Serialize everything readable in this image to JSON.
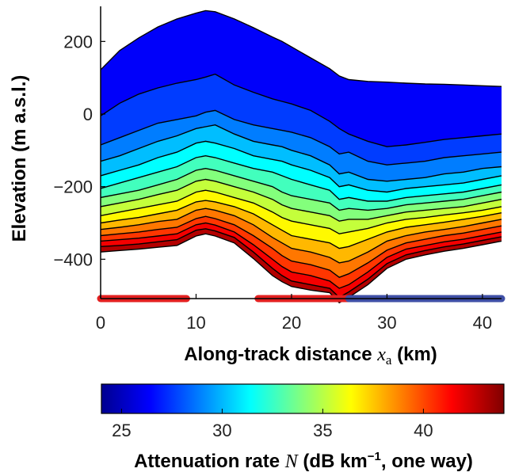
{
  "chart_data": {
    "type": "area",
    "ylabel": "Elevation (m a.s.l.)",
    "xlabel": {
      "text": "Along-track distance ",
      "symbol": "x",
      "subscript": "a",
      "unit": " (km)"
    },
    "xlim": [
      0,
      42
    ],
    "ylim": [
      -520,
      300
    ],
    "x_ticks": [
      0,
      10,
      20,
      30,
      40
    ],
    "y_ticks": [
      200,
      0,
      -200,
      -400
    ],
    "y_tick_labels": [
      "200",
      "0",
      "−200",
      "−400"
    ],
    "x": [
      0,
      2,
      4,
      6,
      8,
      10,
      11,
      12,
      14,
      16,
      18,
      19,
      20,
      22,
      24,
      25,
      26,
      28,
      30,
      32,
      34,
      36,
      38,
      40,
      42
    ],
    "series": [
      {
        "values": [
          122,
          175,
          210,
          240,
          262,
          278,
          285,
          282,
          262,
          238,
          212,
          200,
          185,
          155,
          125,
          105,
          95,
          90,
          88,
          85,
          83,
          82,
          80,
          78,
          76
        ]
      },
      {
        "values": [
          -5,
          30,
          55,
          72,
          85,
          95,
          102,
          110,
          80,
          60,
          42,
          35,
          28,
          10,
          -20,
          -40,
          -55,
          -75,
          -90,
          -85,
          -78,
          -70,
          -65,
          -60,
          -55
        ]
      },
      {
        "values": [
          -85,
          -65,
          -45,
          -25,
          -15,
          -5,
          5,
          10,
          -15,
          -30,
          -40,
          -45,
          -50,
          -65,
          -90,
          -110,
          -105,
          -130,
          -140,
          -135,
          -130,
          -120,
          -115,
          -110,
          -105
        ]
      },
      {
        "values": [
          -130,
          -115,
          -95,
          -75,
          -60,
          -40,
          -35,
          -30,
          -55,
          -75,
          -85,
          -90,
          -100,
          -115,
          -140,
          -165,
          -160,
          -180,
          -185,
          -180,
          -175,
          -165,
          -160,
          -150,
          -145
        ]
      },
      {
        "values": [
          -170,
          -155,
          -140,
          -120,
          -105,
          -80,
          -75,
          -80,
          -95,
          -115,
          -125,
          -130,
          -140,
          -155,
          -175,
          -200,
          -195,
          -210,
          -215,
          -205,
          -200,
          -195,
          -190,
          -180,
          -170
        ]
      },
      {
        "values": [
          -205,
          -190,
          -175,
          -160,
          -145,
          -120,
          -115,
          -120,
          -135,
          -150,
          -160,
          -170,
          -180,
          -195,
          -210,
          -235,
          -230,
          -240,
          -240,
          -230,
          -225,
          -220,
          -215,
          -205,
          -195
        ]
      },
      {
        "values": [
          -230,
          -220,
          -210,
          -195,
          -180,
          -155,
          -150,
          -155,
          -170,
          -185,
          -200,
          -215,
          -225,
          -235,
          -245,
          -265,
          -260,
          -265,
          -260,
          -250,
          -245,
          -240,
          -235,
          -225,
          -215
        ]
      },
      {
        "values": [
          -255,
          -245,
          -235,
          -222,
          -210,
          -185,
          -180,
          -185,
          -200,
          -215,
          -235,
          -250,
          -260,
          -270,
          -280,
          -295,
          -290,
          -290,
          -280,
          -270,
          -265,
          -260,
          -255,
          -245,
          -235
        ]
      },
      {
        "values": [
          -280,
          -270,
          -260,
          -250,
          -240,
          -215,
          -210,
          -215,
          -230,
          -245,
          -270,
          -285,
          -295,
          -305,
          -315,
          -330,
          -325,
          -315,
          -300,
          -290,
          -285,
          -278,
          -272,
          -265,
          -255
        ]
      },
      {
        "values": [
          -300,
          -292,
          -285,
          -275,
          -265,
          -242,
          -238,
          -242,
          -255,
          -275,
          -305,
          -320,
          -335,
          -345,
          -355,
          -370,
          -365,
          -345,
          -325,
          -312,
          -305,
          -298,
          -290,
          -282,
          -272
        ]
      },
      {
        "values": [
          -318,
          -312,
          -305,
          -296,
          -290,
          -265,
          -260,
          -265,
          -280,
          -305,
          -340,
          -355,
          -370,
          -380,
          -395,
          -410,
          -405,
          -380,
          -350,
          -335,
          -325,
          -318,
          -310,
          -300,
          -290
        ]
      },
      {
        "values": [
          -335,
          -330,
          -325,
          -318,
          -312,
          -288,
          -282,
          -288,
          -305,
          -335,
          -370,
          -390,
          -405,
          -415,
          -430,
          -450,
          -440,
          -410,
          -375,
          -355,
          -345,
          -335,
          -328,
          -318,
          -308
        ]
      },
      {
        "values": [
          -350,
          -346,
          -342,
          -336,
          -330,
          -305,
          -300,
          -306,
          -325,
          -360,
          -400,
          -420,
          -435,
          -445,
          -460,
          -480,
          -470,
          -435,
          -395,
          -372,
          -362,
          -352,
          -345,
          -335,
          -325
        ]
      },
      {
        "values": [
          -365,
          -362,
          -358,
          -352,
          -346,
          -320,
          -316,
          -322,
          -340,
          -380,
          -425,
          -445,
          -460,
          -470,
          -480,
          -505,
          -490,
          -455,
          -412,
          -388,
          -376,
          -366,
          -358,
          -348,
          -338
        ]
      },
      {
        "values": [
          -380,
          -376,
          -372,
          -367,
          -362,
          -336,
          -330,
          -336,
          -355,
          -398,
          -445,
          -462,
          -475,
          -485,
          -492,
          -520,
          -505,
          -470,
          -425,
          -400,
          -388,
          -378,
          -370,
          -360,
          -350
        ]
      }
    ],
    "bars": [
      {
        "from": 0,
        "to": 9,
        "color": "#e32020"
      },
      {
        "from": 16.5,
        "to": 26,
        "color": "#e32020"
      },
      {
        "from": 26,
        "to": 42,
        "color": "#3f4fa6"
      }
    ],
    "colorbar": {
      "label": {
        "text": "Attenuation rate ",
        "symbol": "N",
        "unit_pre": " (dB km",
        "exponent": "−1",
        "unit_post": ", one way)"
      },
      "range": [
        24,
        44
      ],
      "ticks": [
        25,
        30,
        35,
        40
      ],
      "colormap": "jet"
    }
  }
}
